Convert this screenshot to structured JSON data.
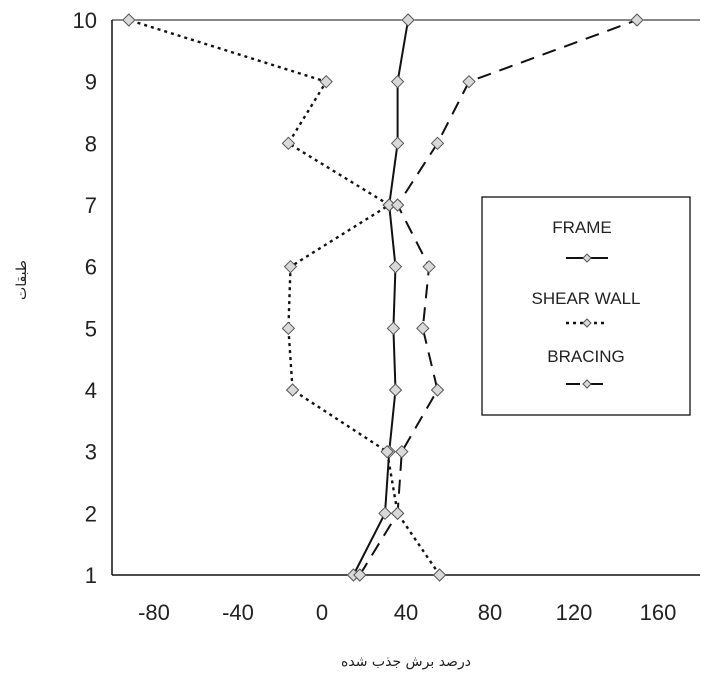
{
  "chart_data": {
    "type": "line",
    "xlabel": "درصد برش جذب شده",
    "ylabel": "طبقات",
    "xlim": [
      -100,
      180
    ],
    "ylim": [
      1,
      10
    ],
    "x_ticks": [
      "-80",
      "-40",
      "0",
      "40",
      "80",
      "120",
      "160"
    ],
    "y_ticks": [
      "1",
      "2",
      "3",
      "4",
      "5",
      "6",
      "7",
      "8",
      "9",
      "10"
    ],
    "grid": false,
    "legend_position": "right",
    "series": [
      {
        "name": "FRAME",
        "line_style": "solid",
        "points": [
          [
            15,
            1
          ],
          [
            30,
            2
          ],
          [
            32,
            3
          ],
          [
            35,
            4
          ],
          [
            34,
            5
          ],
          [
            35,
            6
          ],
          [
            32,
            7
          ],
          [
            36,
            8
          ],
          [
            36,
            9
          ],
          [
            41,
            10
          ]
        ]
      },
      {
        "name": "SHEAR WALL",
        "line_style": "dotted",
        "points": [
          [
            56,
            1
          ],
          [
            36,
            2
          ],
          [
            31,
            3
          ],
          [
            -14,
            4
          ],
          [
            -16,
            5
          ],
          [
            -15,
            6
          ],
          [
            32,
            7
          ],
          [
            -16,
            8
          ],
          [
            2,
            9
          ],
          [
            -92,
            10
          ]
        ]
      },
      {
        "name": "BRACING",
        "line_style": "dashed",
        "points": [
          [
            18,
            1
          ],
          [
            36,
            2
          ],
          [
            38,
            3
          ],
          [
            55,
            4
          ],
          [
            48,
            5
          ],
          [
            51,
            6
          ],
          [
            36,
            7
          ],
          [
            55,
            8
          ],
          [
            70,
            9
          ],
          [
            150,
            10
          ]
        ]
      }
    ]
  }
}
